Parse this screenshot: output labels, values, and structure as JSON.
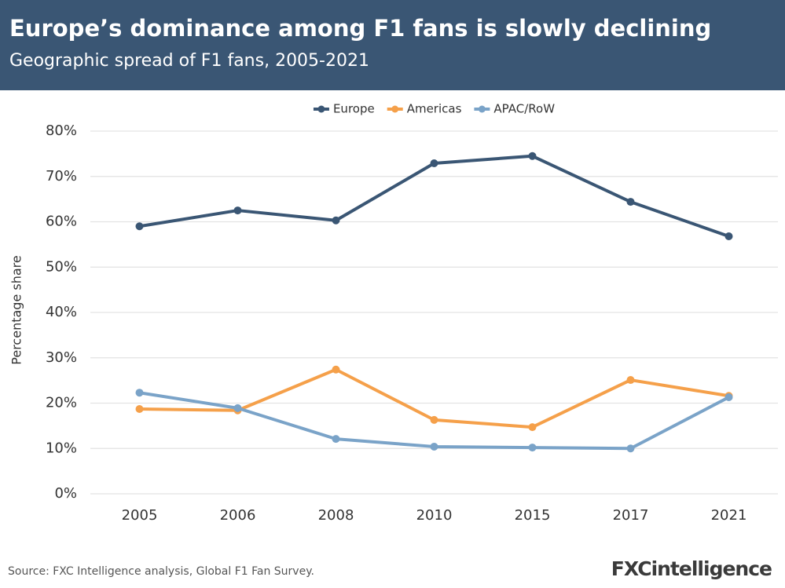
{
  "chart_data": {
    "type": "line",
    "title": "Europe’s dominance among F1 fans is slowly declining",
    "subtitle": "Geographic spread of F1 fans, 2005-2021",
    "y_label": "Percentage share",
    "source": "Source: FXC Intelligence analysis, Global F1 Fan Survey.",
    "logo": "FXCintelligence",
    "categories": [
      "2005",
      "2006",
      "2008",
      "2010",
      "2015",
      "2017",
      "2021"
    ],
    "series": [
      {
        "name": "Europe",
        "color": "#3a5674",
        "values": [
          59.0,
          62.5,
          60.3,
          72.9,
          74.5,
          64.4,
          56.8
        ]
      },
      {
        "name": "Americas",
        "color": "#f5a04a",
        "values": [
          18.7,
          18.4,
          27.4,
          16.3,
          14.7,
          25.1,
          21.6
        ]
      },
      {
        "name": "APAC/RoW",
        "color": "#7aa3c8",
        "values": [
          22.3,
          18.9,
          12.1,
          10.4,
          10.2,
          10.0,
          21.3
        ]
      }
    ],
    "ylim": [
      0,
      80
    ],
    "yticks": [
      {
        "value": 0,
        "label": "0%"
      },
      {
        "value": 10,
        "label": "10%"
      },
      {
        "value": 20,
        "label": "20%"
      },
      {
        "value": 30,
        "label": "30%"
      },
      {
        "value": 40,
        "label": "40%"
      },
      {
        "value": 50,
        "label": "50%"
      },
      {
        "value": 60,
        "label": "60%"
      },
      {
        "value": 70,
        "label": "70%"
      },
      {
        "value": 80,
        "label": "80%"
      }
    ],
    "grid": true
  }
}
